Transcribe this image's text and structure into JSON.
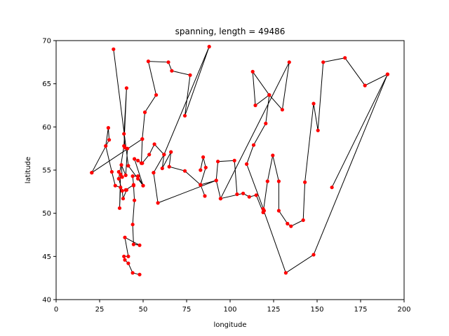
{
  "chart_data": {
    "type": "line",
    "title": "spanning, length = 49486",
    "xlabel": "longitude",
    "ylabel": "latitude",
    "xlim": [
      0,
      200
    ],
    "ylim": [
      40,
      70
    ],
    "xticks": [
      0,
      25,
      50,
      75,
      100,
      125,
      150,
      175,
      200
    ],
    "yticks": [
      40,
      45,
      50,
      55,
      60,
      65,
      70
    ],
    "grid": false,
    "legend": "none",
    "line_color": "#000000",
    "marker_color": "#ff0000",
    "series": [
      {
        "path": [
          [
            20.5,
            54.7
          ],
          [
            30.5,
            58.5
          ],
          [
            30.0,
            59.9
          ],
          [
            28.5,
            57.8
          ],
          [
            32.0,
            54.8
          ],
          [
            34.0,
            53.2
          ],
          [
            37.0,
            53.0
          ],
          [
            36.5,
            50.6
          ],
          [
            37.0,
            54.5
          ],
          [
            36.0,
            54.8
          ],
          [
            38.0,
            54.2
          ],
          [
            37.5,
            55.6
          ],
          [
            40.0,
            54.4
          ],
          [
            41.0,
            57.5
          ],
          [
            39.5,
            57.6
          ],
          [
            39.0,
            59.2
          ],
          [
            40.5,
            64.5
          ],
          [
            39.0,
            57.8
          ],
          [
            36.0,
            54.0
          ],
          [
            38.0,
            52.6
          ],
          [
            38.5,
            51.7
          ],
          [
            40.5,
            52.7
          ],
          [
            40.0,
            52.7
          ],
          [
            44.5,
            53.3
          ],
          [
            44.0,
            54.3
          ],
          [
            47.0,
            54.3
          ],
          [
            50.0,
            53.2
          ],
          [
            45.0,
            56.3
          ],
          [
            47.0,
            56.1
          ],
          [
            49.0,
            55.8
          ],
          [
            49.5,
            58.6
          ],
          [
            20.5,
            54.7
          ]
        ]
      },
      {
        "path": [
          [
            33.0,
            69.0
          ],
          [
            41.5,
            55.5
          ],
          [
            47.0,
            54.0
          ],
          [
            50.0,
            53.2
          ]
        ]
      },
      {
        "path": [
          [
            44.5,
            53.2
          ],
          [
            45.0,
            51.5
          ],
          [
            44.0,
            48.7
          ],
          [
            44.5,
            46.4
          ],
          [
            48.0,
            46.3
          ],
          [
            39.5,
            47.2
          ],
          [
            41.5,
            45.0
          ],
          [
            39.0,
            45.0
          ],
          [
            39.5,
            44.6
          ],
          [
            41.5,
            44.2
          ],
          [
            44.0,
            43.1
          ],
          [
            48.0,
            42.9
          ]
        ]
      },
      {
        "path": [
          [
            49.5,
            58.6
          ],
          [
            51.0,
            61.7
          ],
          [
            57.5,
            63.7
          ],
          [
            53.0,
            67.6
          ],
          [
            64.5,
            67.5
          ],
          [
            66.5,
            66.5
          ],
          [
            77.0,
            66.0
          ],
          [
            74.0,
            61.3
          ],
          [
            88.0,
            69.3
          ],
          [
            62.0,
            56.8
          ],
          [
            56.5,
            58.0
          ],
          [
            53.5,
            56.8
          ],
          [
            49.5,
            55.8
          ]
        ]
      },
      {
        "path": [
          [
            56.0,
            54.7
          ],
          [
            62.0,
            56.8
          ],
          [
            61.0,
            55.2
          ],
          [
            66.0,
            57.1
          ],
          [
            65.0,
            55.4
          ],
          [
            74.0,
            54.9
          ],
          [
            83.0,
            53.3
          ],
          [
            85.5,
            52.0
          ]
        ]
      },
      {
        "path": [
          [
            83.0,
            55.0
          ],
          [
            84.5,
            56.5
          ],
          [
            86.0,
            55.3
          ],
          [
            83.0,
            53.3
          ],
          [
            92.0,
            53.8
          ],
          [
            94.5,
            51.7
          ],
          [
            107.5,
            52.3
          ],
          [
            111.0,
            51.9
          ],
          [
            115.0,
            52.1
          ],
          [
            119.0,
            50.1
          ],
          [
            121.5,
            53.7
          ],
          [
            124.5,
            56.7
          ],
          [
            128.0,
            53.7
          ],
          [
            128.0,
            50.3
          ],
          [
            133.0,
            48.8
          ],
          [
            135.0,
            48.5
          ],
          [
            142.0,
            49.2
          ],
          [
            143.0,
            53.6
          ],
          [
            148.0,
            62.7
          ],
          [
            150.5,
            59.6
          ],
          [
            153.5,
            67.5
          ],
          [
            166.0,
            68.0
          ],
          [
            177.5,
            64.8
          ],
          [
            190.5,
            66.1
          ],
          [
            148.0,
            45.2
          ],
          [
            132.0,
            43.1
          ],
          [
            119.0,
            50.5
          ]
        ]
      },
      {
        "path": [
          [
            56.0,
            54.7
          ],
          [
            58.5,
            51.2
          ],
          [
            92.0,
            53.8
          ],
          [
            93.0,
            56.0
          ],
          [
            102.5,
            56.1
          ],
          [
            104.0,
            52.2
          ]
        ]
      },
      {
        "path": [
          [
            119.5,
            50.3
          ],
          [
            109.5,
            55.7
          ],
          [
            113.5,
            57.9
          ],
          [
            120.5,
            60.4
          ],
          [
            122.5,
            63.7
          ],
          [
            114.5,
            62.5
          ],
          [
            113.0,
            66.4
          ],
          [
            122.5,
            63.7
          ],
          [
            130.0,
            62.0
          ],
          [
            134.0,
            67.5
          ],
          [
            94.5,
            51.7
          ]
        ]
      },
      {
        "path": [
          [
            158.5,
            53.0
          ],
          [
            190.5,
            66.1
          ]
        ]
      }
    ]
  }
}
